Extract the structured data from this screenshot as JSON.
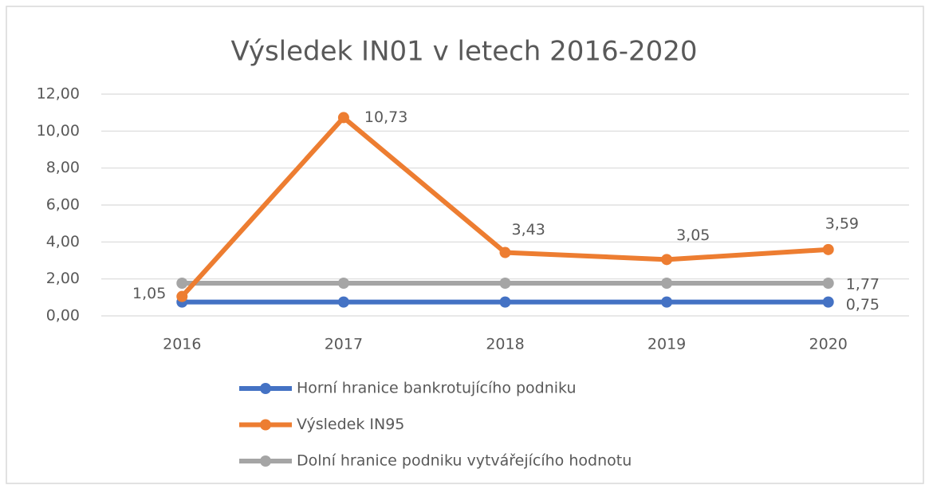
{
  "chart_data": {
    "type": "line",
    "title": "Výsledek IN01 v letech 2016-2020",
    "categories": [
      "2016",
      "2017",
      "2018",
      "2019",
      "2020"
    ],
    "series": [
      {
        "name": "Horní hranice bankrotujícího podniku",
        "color": "#4472c4",
        "values": [
          0.75,
          0.75,
          0.75,
          0.75,
          0.75
        ],
        "value_labels": [
          null,
          null,
          null,
          null,
          "0,75"
        ]
      },
      {
        "name": "Výsledek IN95",
        "color": "#ed7d31",
        "values": [
          1.05,
          10.73,
          3.43,
          3.05,
          3.59
        ],
        "value_labels": [
          "1,05",
          "10,73",
          "3,43",
          "3,05",
          "3,59"
        ]
      },
      {
        "name": "Dolní hranice podniku vytvářejícího hodnotu",
        "color": "#a5a5a5",
        "values": [
          1.77,
          1.77,
          1.77,
          1.77,
          1.77
        ],
        "value_labels": [
          null,
          null,
          null,
          null,
          "1,77"
        ]
      }
    ],
    "ylim": [
      0,
      12
    ],
    "yticks": [
      {
        "value": 0,
        "label": "0,00"
      },
      {
        "value": 2,
        "label": "2,00"
      },
      {
        "value": 4,
        "label": "4,00"
      },
      {
        "value": 6,
        "label": "6,00"
      },
      {
        "value": 8,
        "label": "8,00"
      },
      {
        "value": 10,
        "label": "10,00"
      },
      {
        "value": 12,
        "label": "12,00"
      }
    ],
    "grid": true
  }
}
